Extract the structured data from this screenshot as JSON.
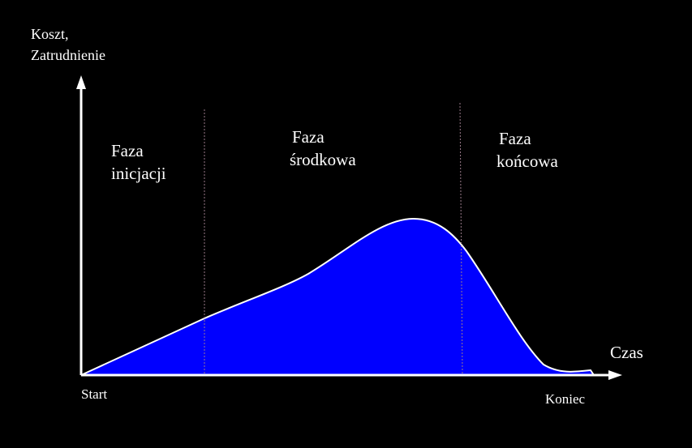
{
  "axes": {
    "y_label": [
      "Koszt,",
      "Zatrudnienie"
    ],
    "x_label": "Czas",
    "start": "Start",
    "end": "Koniec"
  },
  "phases": [
    {
      "lines": [
        "Faza",
        "inicjacji"
      ]
    },
    {
      "lines": [
        "Faza",
        "środkowa"
      ]
    },
    {
      "lines": [
        "Faza",
        "końcowa"
      ]
    }
  ]
}
